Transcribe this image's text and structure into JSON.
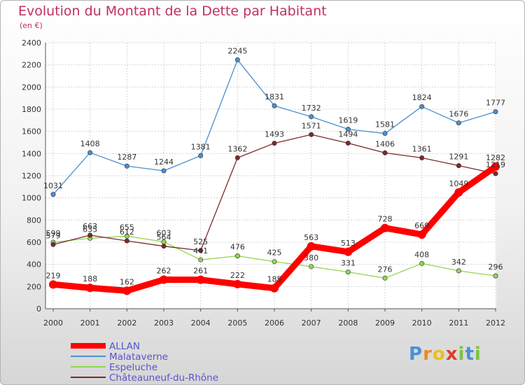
{
  "chart_data": {
    "type": "line",
    "title": "Evolution du Montant de la Dette par Habitant",
    "subtitle": "(en €)",
    "xlabel": "",
    "ylabel": "",
    "ylim": [
      0,
      2400
    ],
    "yticks": [
      0,
      200,
      400,
      600,
      800,
      1000,
      1200,
      1400,
      1600,
      1800,
      2000,
      2200,
      2400
    ],
    "grid": true,
    "legend_position": "bottom-left",
    "x": [
      "2000",
      "2001",
      "2002",
      "2003",
      "2004",
      "2005",
      "2006",
      "2007",
      "2008",
      "2009",
      "2010",
      "2011",
      "2012"
    ],
    "series": [
      {
        "name": "ALLAN",
        "color": "#ff0000",
        "values": [
          219,
          188,
          162,
          262,
          261,
          222,
          185,
          563,
          513,
          728,
          669,
          1049,
          1282
        ]
      },
      {
        "name": "Malataverne",
        "color": "#4e8ecf",
        "values": [
          1031,
          1408,
          1287,
          1244,
          1381,
          2245,
          1831,
          1732,
          1619,
          1581,
          1824,
          1676,
          1777
        ]
      },
      {
        "name": "Espeluche",
        "color": "#90d650",
        "values": [
          599,
          635,
          655,
          603,
          441,
          476,
          425,
          380,
          331,
          276,
          408,
          342,
          296
        ]
      },
      {
        "name": "Châteauneuf-du-Rhône",
        "color": "#7b2a2a",
        "values": [
          579,
          663,
          612,
          564,
          525,
          1362,
          1493,
          1571,
          1494,
          1406,
          1361,
          1291,
          1219
        ]
      }
    ]
  },
  "logo": {
    "text": "Proxiti",
    "letters": [
      "P",
      "r",
      "o",
      "x",
      "i",
      "t",
      "i"
    ],
    "colors": [
      "#4a90d9",
      "#f08a1c",
      "#e8c21a",
      "#e23a2a",
      "#7cc242",
      "#4a90d9",
      "#7cc242"
    ]
  }
}
